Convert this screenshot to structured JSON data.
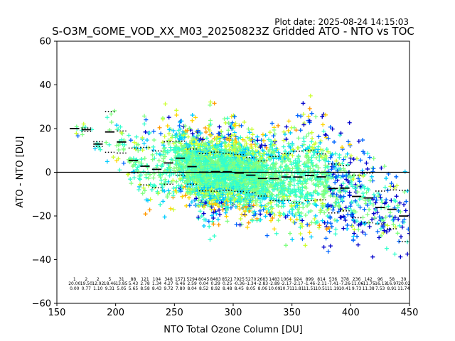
{
  "plot_date": "Plot date: 2025-08-24 14:15:03",
  "chart_data": {
    "type": "scatter",
    "title": "S-O3M_GOME_VOD_XX_M03_20250823Z Gridded ATO - NTO vs TOC",
    "xlabel": "NTO Total Ozone Column [DU]",
    "ylabel": "ATO - NTO [DU]",
    "xlim": [
      150,
      450
    ],
    "ylim": [
      -60,
      60
    ],
    "xticks": [
      150,
      200,
      250,
      300,
      350,
      400,
      450
    ],
    "yticks": [
      -60,
      -40,
      -20,
      0,
      20,
      40,
      60
    ],
    "reference_line_y": 0,
    "grid": false,
    "marker": "+",
    "point_colors": [
      "#0000cc",
      "#0066ff",
      "#00ccff",
      "#33ffcc",
      "#80ff80",
      "#ccff33",
      "#ffd400",
      "#ff9900"
    ],
    "binned_stats": [
      {
        "x": 165,
        "mean": 20.0,
        "std": 0.0,
        "n": "1"
      },
      {
        "x": 175,
        "mean": 19.5,
        "std": 0.77,
        "n": "2"
      },
      {
        "x": 185,
        "mean": 12.92,
        "std": 1.1,
        "n": "2"
      },
      {
        "x": 195,
        "mean": 18.46,
        "std": 9.31,
        "n": "5"
      },
      {
        "x": 205,
        "mean": 13.85,
        "std": 5.05,
        "n": "31"
      },
      {
        "x": 215,
        "mean": 5.43,
        "std": 5.65,
        "n": "88"
      },
      {
        "x": 225,
        "mean": 2.78,
        "std": 8.58,
        "n": "121"
      },
      {
        "x": 235,
        "mean": 1.34,
        "std": 8.43,
        "n": "104"
      },
      {
        "x": 245,
        "mean": 4.27,
        "std": 9.72,
        "n": "348"
      },
      {
        "x": 255,
        "mean": 6.46,
        "std": 7.8,
        "n": "1571"
      },
      {
        "x": 265,
        "mean": 2.59,
        "std": 8.04,
        "n": "5294"
      },
      {
        "x": 275,
        "mean": 0.04,
        "std": 8.52,
        "n": "8045"
      },
      {
        "x": 285,
        "mean": 0.29,
        "std": 8.92,
        "n": "8483"
      },
      {
        "x": 295,
        "mean": 0.25,
        "std": 8.48,
        "n": "8521"
      },
      {
        "x": 305,
        "mean": -0.36,
        "std": 8.45,
        "n": "7925"
      },
      {
        "x": 315,
        "mean": -1.34,
        "std": 8.05,
        "n": "5270"
      },
      {
        "x": 325,
        "mean": -2.83,
        "std": 8.06,
        "n": "2683"
      },
      {
        "x": 335,
        "mean": -2.89,
        "std": 10.09,
        "n": "1483"
      },
      {
        "x": 345,
        "mean": -2.17,
        "std": 10.71,
        "n": "1064"
      },
      {
        "x": 355,
        "mean": -2.17,
        "std": 11.81,
        "n": "924"
      },
      {
        "x": 365,
        "mean": -1.46,
        "std": 11.51,
        "n": "899"
      },
      {
        "x": 375,
        "mean": -2.11,
        "std": 10.51,
        "n": "814"
      },
      {
        "x": 385,
        "mean": -7.41,
        "std": 11.19,
        "n": "536"
      },
      {
        "x": 395,
        "mean": -7.26,
        "std": 10.41,
        "n": "378"
      },
      {
        "x": 405,
        "mean": -11.06,
        "std": 9.73,
        "n": "236"
      },
      {
        "x": 415,
        "mean": -11.75,
        "std": 11.38,
        "n": "142"
      },
      {
        "x": 425,
        "mean": -16.13,
        "std": 7.53,
        "n": "96"
      },
      {
        "x": 435,
        "mean": -16.97,
        "std": 8.91,
        "n": "58"
      },
      {
        "x": 445,
        "mean": -20.02,
        "std": 11.74,
        "n": "39"
      }
    ]
  }
}
